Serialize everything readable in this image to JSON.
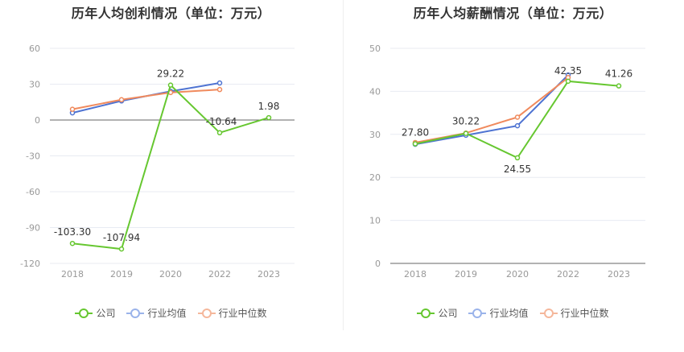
{
  "chart_data": [
    {
      "type": "line",
      "title": "历年人均创利情况（单位：万元）",
      "categories": [
        "2018",
        "2019",
        "2020",
        "2022",
        "2023"
      ],
      "ylim": [
        -120,
        60
      ],
      "yticks": [
        60,
        30,
        0,
        -30,
        -60,
        -90,
        -120
      ],
      "grid": true,
      "legend_position": "bottom",
      "series": [
        {
          "name": "公司",
          "color": "#66c730",
          "values": [
            -103.3,
            -107.94,
            29.22,
            -10.64,
            1.98
          ],
          "labels": [
            "-103.30",
            "-107.94",
            "29.22",
            "-10.64",
            "1.98"
          ]
        },
        {
          "name": "行业均值",
          "color": "#4e73d2",
          "values": [
            6,
            16,
            24,
            31,
            null
          ]
        },
        {
          "name": "行业中位数",
          "color": "#f08a5d",
          "values": [
            9,
            17,
            23,
            25.5,
            null
          ]
        }
      ]
    },
    {
      "type": "line",
      "title": "历年人均薪酬情况（单位：万元）",
      "categories": [
        "2018",
        "2019",
        "2020",
        "2022",
        "2023"
      ],
      "ylim": [
        0,
        50
      ],
      "yticks": [
        50,
        40,
        30,
        20,
        10,
        0
      ],
      "grid": true,
      "legend_position": "bottom",
      "series": [
        {
          "name": "公司",
          "color": "#66c730",
          "values": [
            27.8,
            30.22,
            24.55,
            42.35,
            41.26
          ],
          "labels": [
            "27.80",
            "30.22",
            "24.55",
            "42.35",
            "41.26"
          ]
        },
        {
          "name": "行业均值",
          "color": "#4e73d2",
          "values": [
            27.7,
            29.8,
            32,
            43.8,
            null
          ]
        },
        {
          "name": "行业中位数",
          "color": "#f08a5d",
          "values": [
            28.1,
            30.3,
            34,
            43.2,
            null
          ]
        }
      ]
    }
  ],
  "legend": {
    "company": "公司",
    "industry_avg": "行业均值",
    "industry_median": "行业中位数"
  },
  "colors": {
    "company": "#66c730",
    "industry_avg": "#4e73d2",
    "industry_median": "#f08a5d",
    "legend_avg_light": "#9ab3ea",
    "legend_median_light": "#f5b79b"
  }
}
